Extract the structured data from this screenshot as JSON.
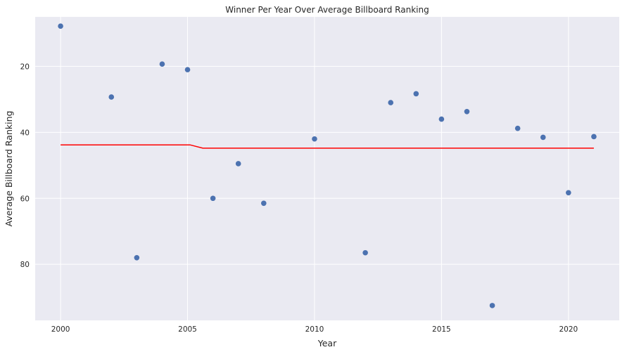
{
  "chart_data": {
    "type": "scatter",
    "title": "Winner Per Year Over Average Billboard Ranking",
    "xlabel": "Year",
    "ylabel": "Average Billboard Ranking",
    "xlim": [
      1999.0,
      2022.0
    ],
    "ylim": [
      97.0,
      5.0
    ],
    "y_inverted": true,
    "grid": true,
    "background": "#eaeaf2",
    "x_ticks": [
      2000,
      2005,
      2010,
      2015,
      2020
    ],
    "y_ticks": [
      20,
      40,
      60,
      80
    ],
    "series": [
      {
        "kind": "scatter",
        "color": "#4c72b0",
        "x": [
          2000,
          2002,
          2003,
          2004,
          2005,
          2006,
          2007,
          2008,
          2010,
          2012,
          2013,
          2014,
          2015,
          2016,
          2017,
          2018,
          2019,
          2020,
          2021
        ],
        "y": [
          7.8,
          29.3,
          78.0,
          19.3,
          21.0,
          60.0,
          49.5,
          61.5,
          42.0,
          76.5,
          31.0,
          28.3,
          36.0,
          33.7,
          92.5,
          38.8,
          41.5,
          58.3,
          41.3
        ]
      },
      {
        "kind": "line",
        "color": "#ff0000",
        "x": [
          2000,
          2005.1,
          2005.6,
          2021
        ],
        "y": [
          43.8,
          43.8,
          44.8,
          44.8
        ]
      }
    ]
  }
}
